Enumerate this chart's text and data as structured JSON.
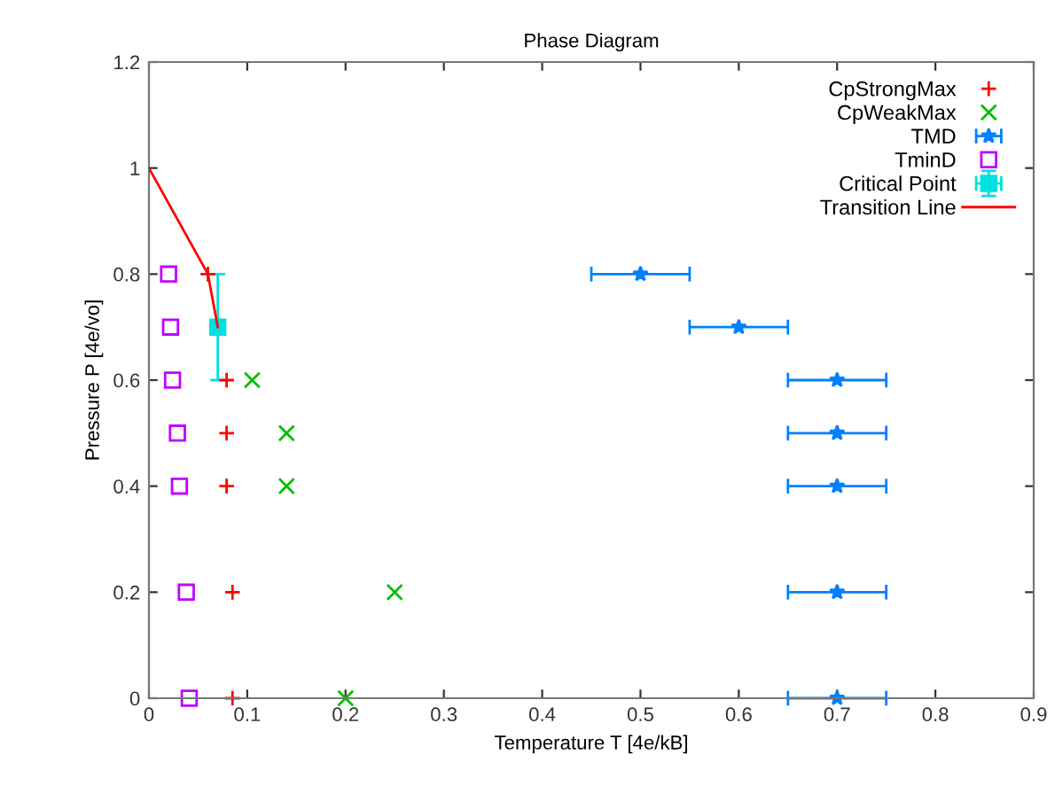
{
  "chart_data": {
    "type": "scatter",
    "title": "Phase Diagram",
    "xlabel": "Temperature T [4e/kB]",
    "ylabel": "Pressure P [4e/vo]",
    "xlim": [
      0,
      0.9
    ],
    "ylim": [
      0,
      1.2
    ],
    "xticks": [
      0,
      0.1,
      0.2,
      0.3,
      0.4,
      0.5,
      0.6,
      0.7,
      0.8,
      0.9
    ],
    "yticks": [
      0,
      0.2,
      0.4,
      0.6,
      0.8,
      1,
      1.2
    ],
    "grid": false,
    "legend": "top right",
    "series": [
      {
        "name": "CpStrongMax",
        "type": "scatter",
        "marker": "cross",
        "color": "#ff0000",
        "x": [
          0.06,
          0.079,
          0.079,
          0.079,
          0.085,
          0.085
        ],
        "values": [
          0.8,
          0.6,
          0.5,
          0.4,
          0.2,
          0
        ]
      },
      {
        "name": "CpWeakMax",
        "type": "scatter",
        "marker": "x",
        "color": "#00c000",
        "x": [
          0.105,
          0.14,
          0.14,
          0.25,
          0.2
        ],
        "values": [
          0.6,
          0.5,
          0.4,
          0.2,
          0
        ]
      },
      {
        "name": "TMD",
        "type": "scatter",
        "marker": "star",
        "color": "#0080ff",
        "x": [
          0.5,
          0.6,
          0.7,
          0.7,
          0.7,
          0.7,
          0.7
        ],
        "values": [
          0.8,
          0.7,
          0.6,
          0.5,
          0.4,
          0.2,
          0
        ],
        "xerrors": [
          0.05,
          0.05,
          0.05,
          0.05,
          0.05,
          0.05,
          0.05
        ]
      },
      {
        "name": "TminD",
        "type": "scatter",
        "marker": "square",
        "color": "#c000ff",
        "x": [
          0.02,
          0.022,
          0.024,
          0.029,
          0.031,
          0.038,
          0.041
        ],
        "values": [
          0.8,
          0.7,
          0.6,
          0.5,
          0.4,
          0.2,
          0
        ]
      },
      {
        "name": "Critical Point",
        "type": "scatter",
        "marker": "square",
        "color": "#00e0e0",
        "x": [
          0.07
        ],
        "values": [
          0.7
        ],
        "xerrors": [
          0.005
        ],
        "errors": [
          0.1
        ]
      },
      {
        "name": "Transition Line",
        "type": "line",
        "marker": "none",
        "color": "#ff0000",
        "x": [
          0,
          0.06,
          0.07
        ],
        "values": [
          1,
          0.8,
          0.7
        ]
      }
    ]
  }
}
